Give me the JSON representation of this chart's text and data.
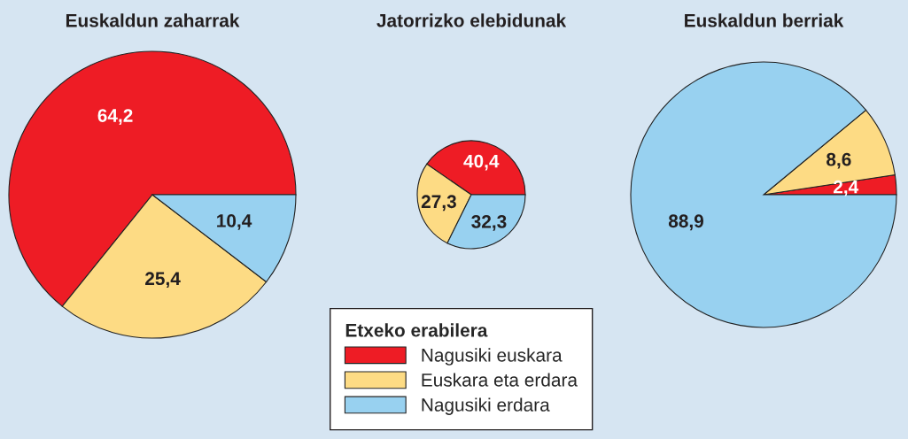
{
  "chart_data": [
    {
      "type": "pie",
      "title": "Euskaldun zaharrak",
      "categories": [
        "Nagusiki euskara",
        "Euskara eta erdara",
        "Nagusiki erdara"
      ],
      "values": [
        64.2,
        25.4,
        10.4
      ],
      "value_labels": [
        "64,2",
        "25,4",
        "10,4"
      ],
      "colors": [
        "#ee1c25",
        "#fddb84",
        "#98d1f0"
      ],
      "legend": "bottom",
      "legend_title": "Etxeko erabilera"
    },
    {
      "type": "pie",
      "title": "Jatorrizko elebidunak",
      "values": [
        40.4,
        27.3,
        32.3
      ],
      "value_labels": [
        "40,4",
        "27,3",
        "32,3"
      ],
      "colors": [
        "#ee1c25",
        "#fddb84",
        "#98d1f0"
      ]
    },
    {
      "type": "pie",
      "title": "Euskaldun berriak",
      "values": [
        2.4,
        8.6,
        88.9
      ],
      "value_labels": [
        "2,4",
        "8,6",
        "88,9"
      ],
      "colors": [
        "#ee1c25",
        "#fddb84",
        "#98d1f0"
      ]
    }
  ]
}
